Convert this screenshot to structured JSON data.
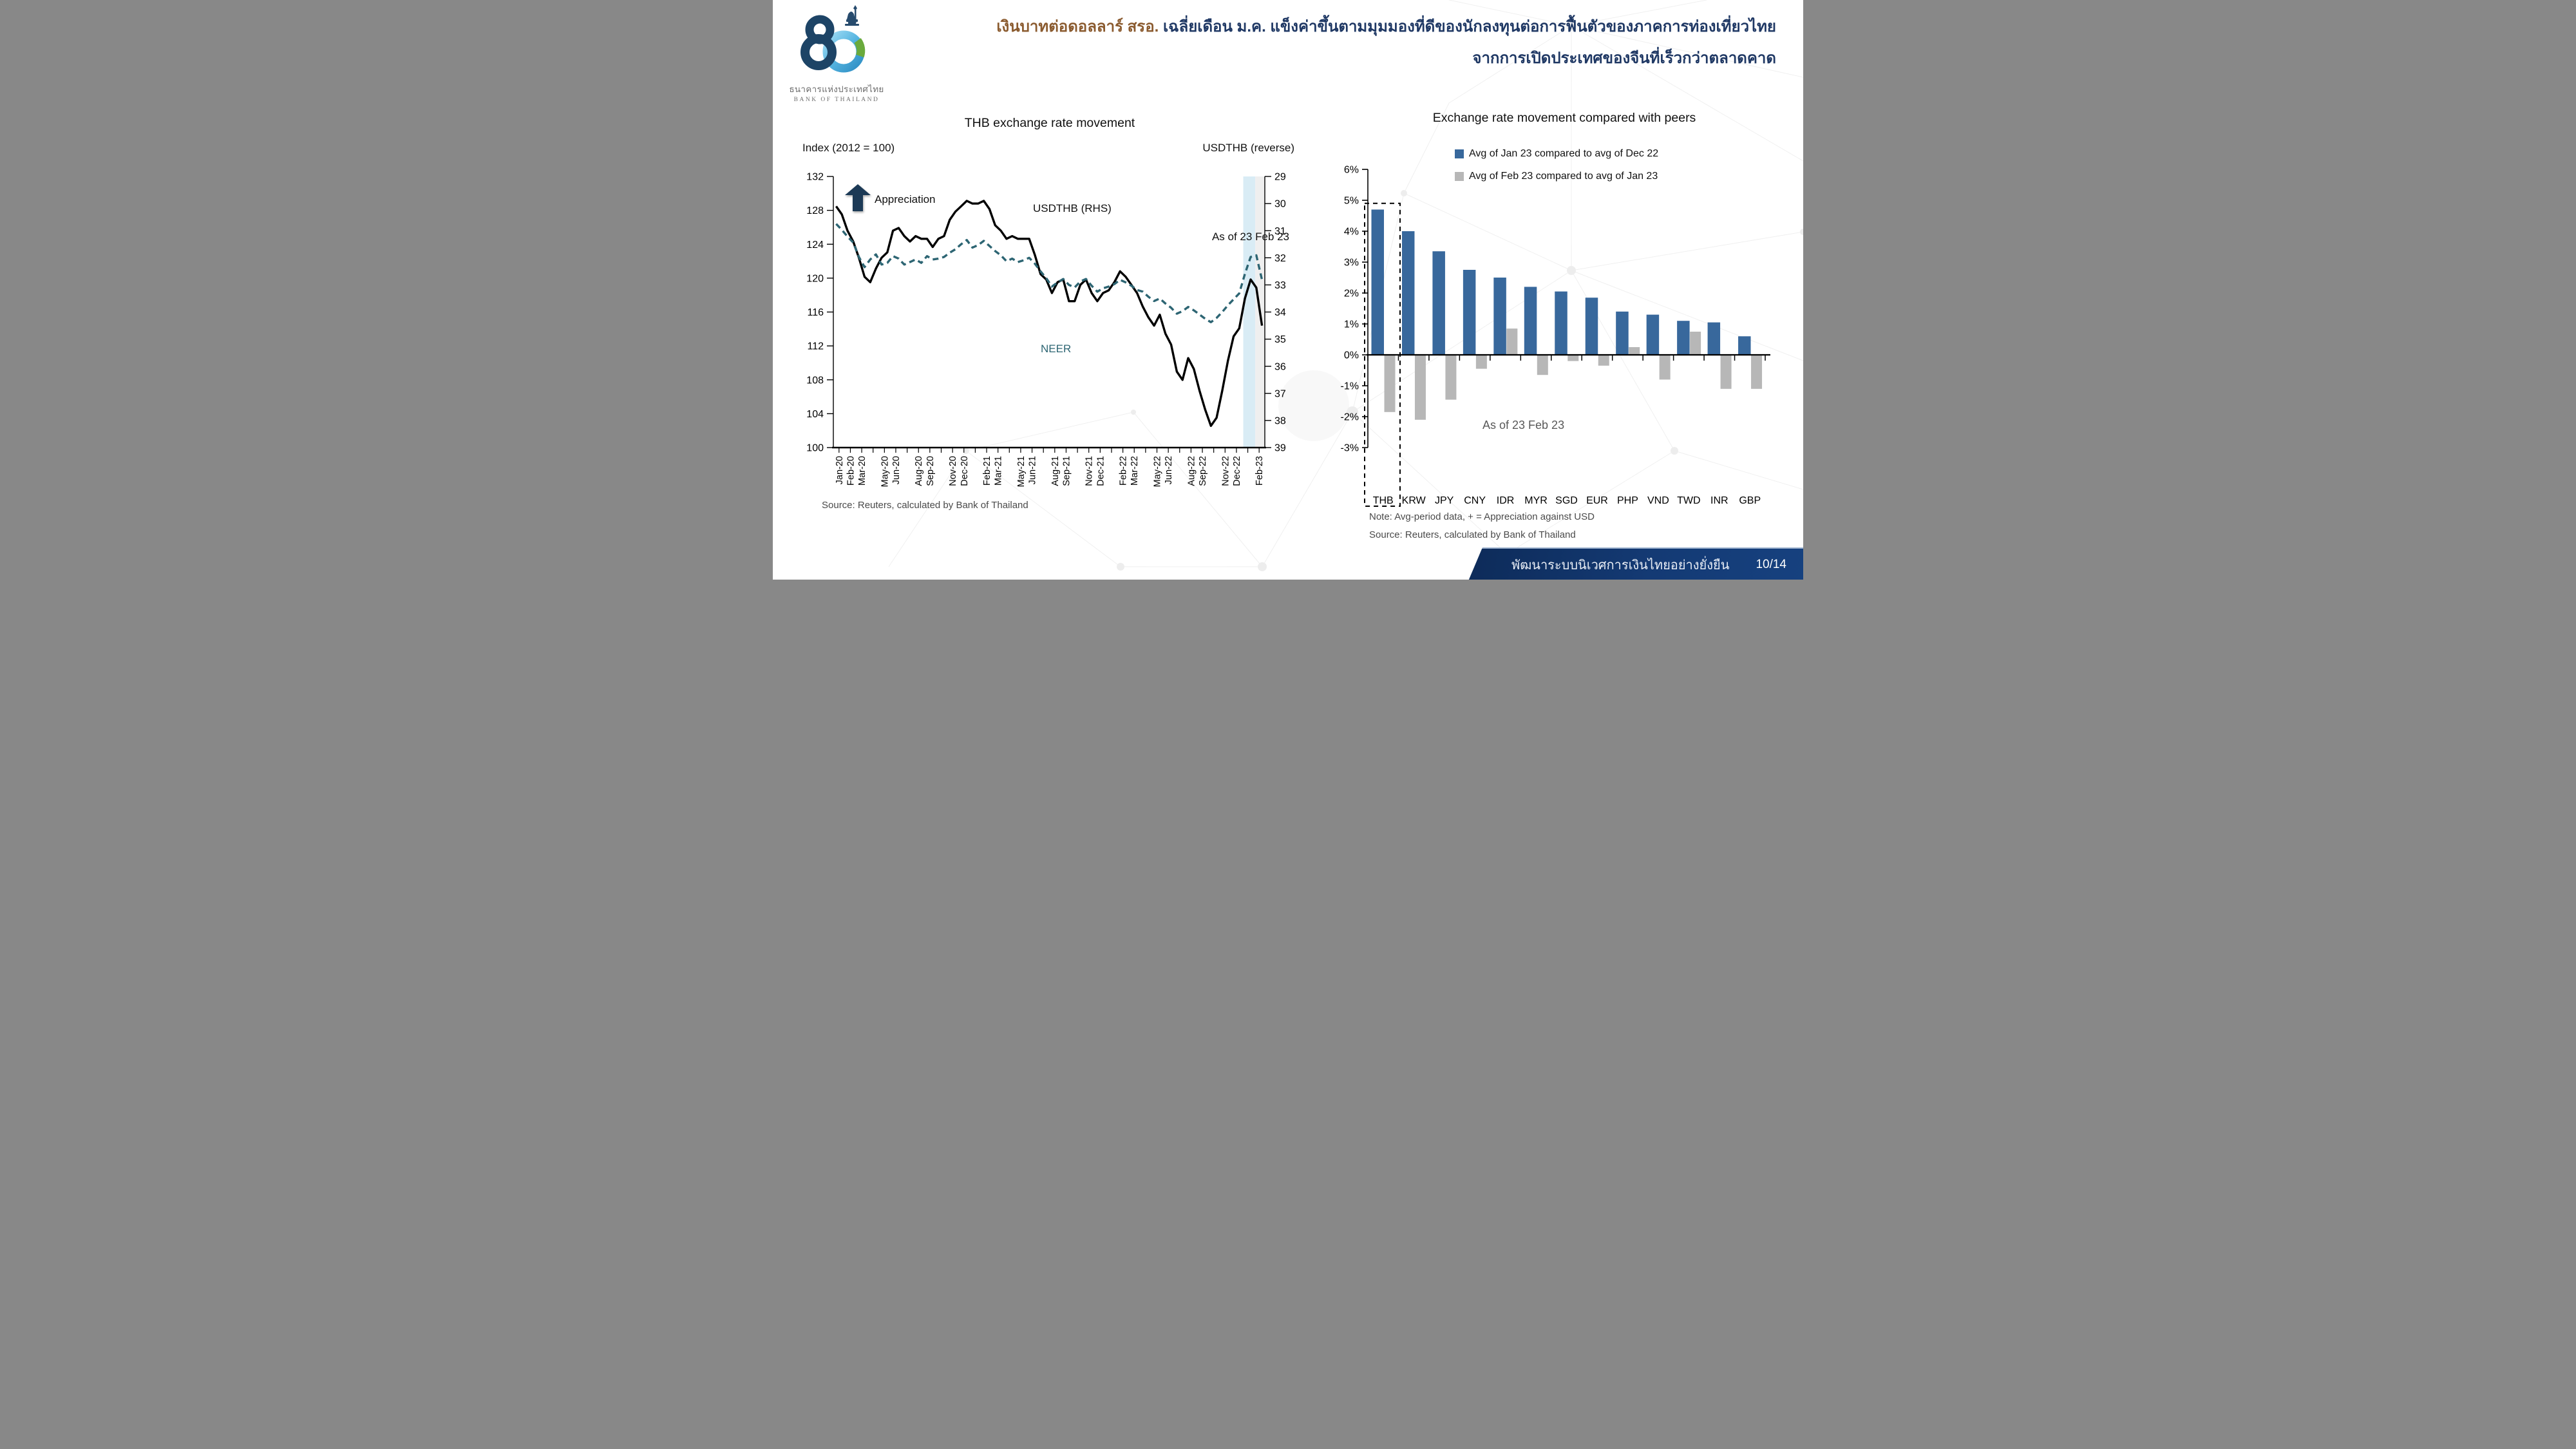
{
  "header": {
    "logo_thai": "ธนาคารแห่งประเทศไทย",
    "logo_english": "BANK OF THAILAND",
    "title_highlight": "เงินบาทต่อดอลลาร์ สรอ.",
    "title_rest": " เฉลี่ยเดือน ม.ค. แข็งค่าขึ้นตามมุมมองที่ดีของนักลงทุนต่อการฟื้นตัวของภาคการท่องเที่ยวไทย",
    "title_line2": "จากการเปิดประเทศของจีนที่เร็วกว่าตลาดคาด",
    "title_color_main": "#1f3864",
    "title_color_highlight": "#8a5a2e"
  },
  "chart_data": [
    {
      "type": "line",
      "title": "THB exchange rate movement",
      "left_axis_label": "Index (2012 = 100)",
      "right_axis_label": "USDTHB (reverse)",
      "left_ylim": [
        100,
        132
      ],
      "left_ticks": [
        132,
        128,
        124,
        120,
        116,
        112,
        108,
        104,
        100
      ],
      "right_ylim_reversed": [
        29,
        39
      ],
      "right_ticks": [
        29,
        30,
        31,
        32,
        33,
        34,
        35,
        36,
        37,
        38,
        39
      ],
      "month_count": 38,
      "x_tick_labels": [
        "Jan-20",
        "Feb-20",
        "Mar-20",
        "May-20",
        "Jun-20",
        "Aug-20",
        "Sep-20",
        "Nov-20",
        "Dec-20",
        "Feb-21",
        "Mar-21",
        "May-21",
        "Jun-21",
        "Aug-21",
        "Sep-21",
        "Nov-21",
        "Dec-21",
        "Feb-22",
        "Mar-22",
        "May-22",
        "Jun-22",
        "Aug-22",
        "Sep-22",
        "Nov-22",
        "Dec-22",
        "Feb-23"
      ],
      "x_tick_month_index": [
        0,
        1,
        2,
        4,
        5,
        7,
        8,
        10,
        11,
        13,
        14,
        16,
        17,
        19,
        20,
        22,
        23,
        25,
        26,
        28,
        29,
        31,
        32,
        34,
        35,
        37
      ],
      "series": [
        {
          "name": "USDTHB (RHS)",
          "axis": "right",
          "style": "solid",
          "color": "#000000",
          "values": [
            30.1,
            30.4,
            31.0,
            31.4,
            32.0,
            32.7,
            32.9,
            32.4,
            32.0,
            31.8,
            31.0,
            30.9,
            31.2,
            31.4,
            31.2,
            31.3,
            31.3,
            31.6,
            31.3,
            31.2,
            30.6,
            30.3,
            30.1,
            29.9,
            30.0,
            30.0,
            29.9,
            30.2,
            30.8,
            31.0,
            31.3,
            31.2,
            31.3,
            31.3,
            31.3,
            31.9,
            32.6,
            32.8,
            33.3,
            32.9,
            32.8,
            33.6,
            33.6,
            33.0,
            32.8,
            33.3,
            33.6,
            33.3,
            33.2,
            32.9,
            32.5,
            32.7,
            33.0,
            33.3,
            33.8,
            34.2,
            34.5,
            34.1,
            34.8,
            35.2,
            36.2,
            36.5,
            35.7,
            36.1,
            36.9,
            37.6,
            38.2,
            37.9,
            36.9,
            35.8,
            34.9,
            34.6,
            33.5,
            32.8,
            33.1,
            34.5
          ]
        },
        {
          "name": "NEER",
          "axis": "left",
          "style": "dashed",
          "color": "#2d6573",
          "values": [
            126.4,
            125.7,
            124.9,
            124.2,
            122.5,
            121.3,
            122.2,
            122.8,
            121.6,
            121.8,
            122.6,
            122.3,
            121.6,
            121.9,
            122.2,
            121.8,
            122.6,
            122.2,
            122.3,
            122.5,
            123.0,
            123.4,
            124.0,
            124.5,
            123.6,
            123.9,
            124.4,
            123.8,
            123.2,
            122.7,
            122.0,
            122.3,
            121.9,
            122.1,
            122.4,
            121.7,
            120.8,
            120.0,
            119.0,
            119.5,
            119.9,
            119.2,
            118.9,
            119.6,
            119.9,
            119.1,
            118.4,
            118.8,
            119.0,
            119.3,
            119.8,
            119.5,
            119.1,
            118.6,
            118.4,
            117.8,
            117.3,
            117.6,
            117.0,
            116.5,
            115.8,
            116.1,
            116.6,
            116.2,
            115.7,
            115.2,
            114.8,
            115.3,
            116.0,
            116.8,
            117.5,
            118.2,
            120.5,
            122.5,
            122.7,
            119.8
          ]
        }
      ],
      "highlight_bands": [
        {
          "from_month": 36.1,
          "to_month": 37.16,
          "color": "#d9ecf5"
        },
        {
          "from_month": 37.16,
          "to_month": 38.0,
          "color": "#efefef"
        }
      ],
      "annotations": {
        "appreciation": "Appreciation",
        "usdthb": "USDTHB (RHS)",
        "neer": "NEER",
        "as_of": "As of 23 Feb 23"
      },
      "source": "Source: Reuters, calculated by Bank of Thailand"
    },
    {
      "type": "bar",
      "title": "Exchange rate movement compared with peers",
      "categories": [
        "THB",
        "KRW",
        "JPY",
        "CNY",
        "IDR",
        "MYR",
        "SGD",
        "EUR",
        "PHP",
        "VND",
        "TWD",
        "INR",
        "GBP"
      ],
      "series": [
        {
          "name": "Avg of Jan 23 compared to avg of Dec 22",
          "color": "#38689c",
          "values": [
            4.7,
            4.0,
            3.35,
            2.75,
            2.5,
            2.2,
            2.05,
            1.85,
            1.4,
            1.3,
            1.1,
            1.05,
            0.6
          ]
        },
        {
          "name": "Avg of Feb 23 compared to avg of Jan 23",
          "color": "#b7b7b7",
          "values": [
            -1.85,
            -2.1,
            -1.45,
            -0.45,
            0.85,
            -0.65,
            -0.2,
            -0.35,
            0.25,
            -0.8,
            0.75,
            -1.1,
            -1.1
          ]
        }
      ],
      "ylim": [
        -3,
        6
      ],
      "y_tick_values": [
        6,
        5,
        4,
        3,
        2,
        1,
        0,
        -1,
        -2,
        -3
      ],
      "y_tick_labels": [
        "6%",
        "5%",
        "4%",
        "3%",
        "2%",
        "1%",
        "0%",
        "-1%",
        "-2%",
        "-3%"
      ],
      "highlight_box_category": "THB",
      "highlight_box_top_pct": 4.9,
      "annotation_as_of": "As of 23 Feb 23",
      "note": "Note: Avg-period data, + = Appreciation against USD",
      "source": "Source: Reuters, calculated by Bank of Thailand",
      "legend_position": "top"
    }
  ],
  "footer": {
    "text": "พัฒนาระบบนิเวศการเงินไทยอย่างยั่งยืน",
    "page": "10/14",
    "bar_color": "#143a74"
  }
}
